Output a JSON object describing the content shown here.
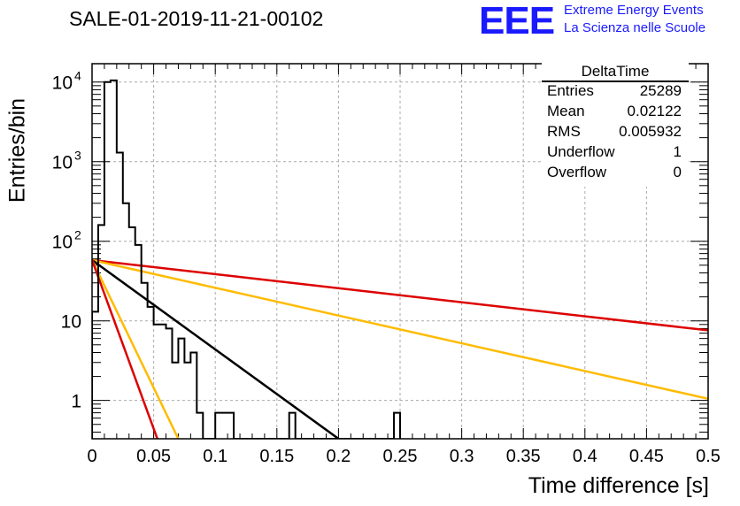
{
  "title": "SALE-01-2019-11-21-00102",
  "logo": {
    "mark": "EEE",
    "line1": "Extreme Energy Events",
    "line2": "La Scienza nelle Scuole"
  },
  "stats": {
    "name": "DeltaTime",
    "rows": [
      {
        "key": "Entries",
        "value": "25289"
      },
      {
        "key": "Mean",
        "value": "0.02122"
      },
      {
        "key": "RMS",
        "value": "0.005932"
      },
      {
        "key": "Underflow",
        "value": "1"
      },
      {
        "key": "Overflow",
        "value": "0"
      }
    ]
  },
  "chart_data": {
    "type": "histogram",
    "xlabel": "Time difference [s]",
    "ylabel": "Entries/bin",
    "xlim": [
      0,
      0.5
    ],
    "ylim": [
      0.33,
      17000
    ],
    "yscale": "log",
    "grid": true,
    "x_ticks": [
      "0",
      "0.05",
      "0.1",
      "0.15",
      "0.2",
      "0.25",
      "0.3",
      "0.35",
      "0.4",
      "0.45",
      "0.5"
    ],
    "y_ticks": [
      {
        "value": 1,
        "label": "1"
      },
      {
        "value": 10,
        "label": "10"
      },
      {
        "value": 100,
        "label": "10",
        "exp": "2"
      },
      {
        "value": 1000,
        "label": "10",
        "exp": "3"
      },
      {
        "value": 10000,
        "label": "10",
        "exp": "4"
      }
    ],
    "histogram": {
      "color": "#000000",
      "bin_width": 0.005,
      "x_start": 0,
      "counts": [
        13,
        160,
        10000,
        10500,
        1300,
        300,
        150,
        90,
        30,
        15,
        9,
        9,
        8,
        3,
        6,
        3,
        4,
        0.7,
        0,
        0,
        0.7,
        0.7,
        0.7,
        0,
        0,
        0,
        0,
        0,
        0,
        0,
        0,
        0,
        0.7,
        0,
        0,
        0,
        0,
        0,
        0,
        0,
        0,
        0,
        0,
        0,
        0,
        0,
        0,
        0,
        0,
        0.7
      ]
    },
    "lines": [
      {
        "color": "#dd0000",
        "x": [
          0,
          0.5
        ],
        "y": [
          58,
          7.6
        ]
      },
      {
        "color": "#ffbb00",
        "x": [
          0,
          0.5
        ],
        "y": [
          58,
          1.05
        ]
      },
      {
        "color": "#000000",
        "x": [
          0,
          0.2
        ],
        "y": [
          58,
          0.3
        ]
      },
      {
        "color": "#ffbb00",
        "x": [
          0,
          0.07
        ],
        "y": [
          58,
          0.3
        ]
      },
      {
        "color": "#dd0000",
        "x": [
          0,
          0.053
        ],
        "y": [
          58,
          0.3
        ]
      }
    ]
  }
}
